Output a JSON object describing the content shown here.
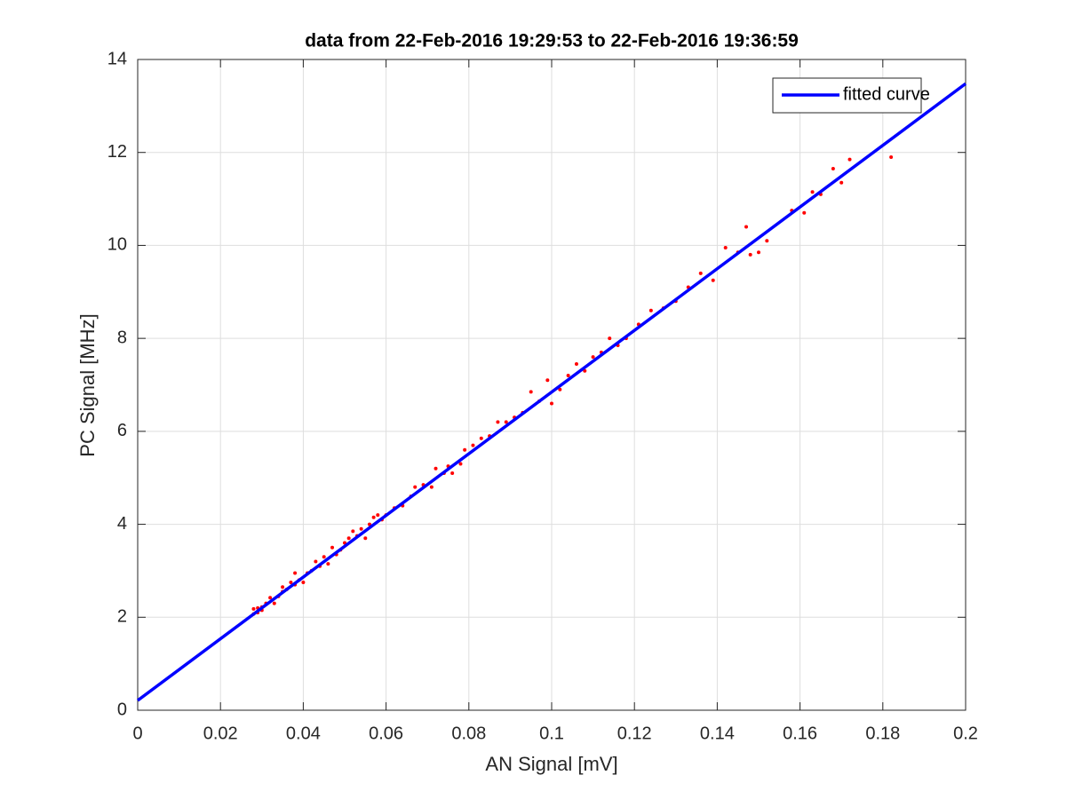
{
  "chart_data": {
    "type": "scatter",
    "title": "data from 22-Feb-2016 19:29:53 to 22-Feb-2016 19:36:59",
    "x_label": "AN Signal [mV]",
    "y_label": "PC Signal [MHz]",
    "xlim": [
      0,
      0.2
    ],
    "ylim": [
      0,
      14
    ],
    "xticks": [
      0,
      0.02,
      0.04,
      0.06,
      0.08,
      0.1,
      0.12,
      0.14,
      0.16,
      0.18,
      0.2
    ],
    "yticks": [
      0,
      2,
      4,
      6,
      8,
      10,
      12,
      14
    ],
    "grid": true,
    "legend": "northeast",
    "series": [
      {
        "color": "#ff0000",
        "mode": "markers",
        "x": [
          0.028,
          0.028,
          0.029,
          0.029,
          0.03,
          0.03,
          0.031,
          0.032,
          0.033,
          0.034,
          0.035,
          0.035,
          0.036,
          0.037,
          0.038,
          0.038,
          0.039,
          0.04,
          0.041,
          0.042,
          0.043,
          0.044,
          0.045,
          0.046,
          0.047,
          0.048,
          0.049,
          0.05,
          0.051,
          0.052,
          0.053,
          0.054,
          0.055,
          0.056,
          0.057,
          0.058,
          0.059,
          0.06,
          0.062,
          0.064,
          0.066,
          0.067,
          0.069,
          0.071,
          0.072,
          0.074,
          0.075,
          0.076,
          0.078,
          0.079,
          0.081,
          0.083,
          0.085,
          0.087,
          0.089,
          0.091,
          0.093,
          0.095,
          0.097,
          0.099,
          0.1,
          0.102,
          0.104,
          0.106,
          0.108,
          0.11,
          0.112,
          0.114,
          0.116,
          0.118,
          0.121,
          0.124,
          0.127,
          0.13,
          0.133,
          0.136,
          0.139,
          0.142,
          0.145,
          0.147,
          0.148,
          0.15,
          0.152,
          0.158,
          0.161,
          0.163,
          0.165,
          0.168,
          0.17,
          0.172,
          0.182
        ],
        "values": [
          2.07,
          2.18,
          2.1,
          2.2,
          2.15,
          2.22,
          2.3,
          2.42,
          2.3,
          2.45,
          2.55,
          2.65,
          2.6,
          2.75,
          2.95,
          2.7,
          2.8,
          2.75,
          2.95,
          3.0,
          3.2,
          3.1,
          3.3,
          3.15,
          3.5,
          3.35,
          3.45,
          3.6,
          3.7,
          3.85,
          3.75,
          3.9,
          3.7,
          4.0,
          4.15,
          4.2,
          4.1,
          4.2,
          4.35,
          4.4,
          4.6,
          4.8,
          4.85,
          4.8,
          5.2,
          5.1,
          5.25,
          5.1,
          5.3,
          5.6,
          5.7,
          5.85,
          5.9,
          6.2,
          6.2,
          6.3,
          6.4,
          6.85,
          6.65,
          7.1,
          6.6,
          6.9,
          7.2,
          7.45,
          7.3,
          7.6,
          7.7,
          8.0,
          7.85,
          8.0,
          8.3,
          8.6,
          8.65,
          8.8,
          9.1,
          9.4,
          9.25,
          9.95,
          9.85,
          10.4,
          9.8,
          9.85,
          10.1,
          10.75,
          10.7,
          11.15,
          11.1,
          11.65,
          11.35,
          11.85,
          11.9
        ]
      },
      {
        "name": "fitted curve",
        "color": "#0000ff",
        "mode": "line",
        "x": [
          0,
          0.2
        ],
        "values": [
          0.21,
          13.48
        ]
      }
    ]
  }
}
